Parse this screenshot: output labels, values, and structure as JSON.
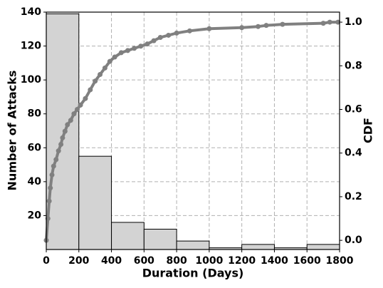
{
  "chart_data": {
    "type": "histogram",
    "xlabel": "Duration (Days)",
    "ylabel": "Number of Attacks",
    "y2label": "CDF",
    "bins": [
      0,
      200,
      400,
      600,
      800,
      1000,
      1200,
      1400,
      1600,
      1800
    ],
    "values": [
      139,
      55,
      16,
      12,
      5,
      1,
      3,
      1,
      3
    ],
    "color": "#d3d3d3",
    "edgecolor": "#000000",
    "xlim": [
      0,
      1800
    ],
    "xticks": [
      0,
      200,
      400,
      600,
      800,
      1000,
      1200,
      1400,
      1600,
      1800
    ],
    "ylim": [
      0,
      140
    ],
    "yticks": [
      20,
      40,
      60,
      80,
      100,
      120,
      140
    ],
    "y2lim": [
      -0.042,
      1.046
    ],
    "y2ticks": [
      {
        "value": 0,
        "label": "0.0"
      },
      {
        "value": 0.2,
        "label": "0.2"
      },
      {
        "value": 0.4,
        "label": "0.4"
      },
      {
        "value": 0.6,
        "label": "0.6"
      },
      {
        "value": 0.8,
        "label": "0.8"
      },
      {
        "value": 1,
        "label": "1.0"
      }
    ],
    "grid": true,
    "line": {
      "type": "line",
      "axis": "y2",
      "color": "#808080",
      "x": [
        0,
        10,
        18,
        25,
        35,
        45,
        60,
        75,
        90,
        100,
        115,
        130,
        150,
        170,
        190,
        210,
        240,
        270,
        300,
        330,
        360,
        390,
        420,
        460,
        500,
        540,
        580,
        620,
        660,
        700,
        750,
        800,
        880,
        1000,
        1200,
        1300,
        1350,
        1450,
        1700,
        1740,
        1790
      ],
      "values": [
        0,
        0.1,
        0.18,
        0.24,
        0.3,
        0.34,
        0.37,
        0.41,
        0.44,
        0.47,
        0.5,
        0.53,
        0.55,
        0.58,
        0.6,
        0.62,
        0.65,
        0.69,
        0.73,
        0.76,
        0.79,
        0.82,
        0.84,
        0.86,
        0.87,
        0.88,
        0.89,
        0.9,
        0.915,
        0.93,
        0.94,
        0.95,
        0.96,
        0.97,
        0.975,
        0.98,
        0.985,
        0.99,
        0.995,
        1.0,
        1.0
      ]
    }
  }
}
